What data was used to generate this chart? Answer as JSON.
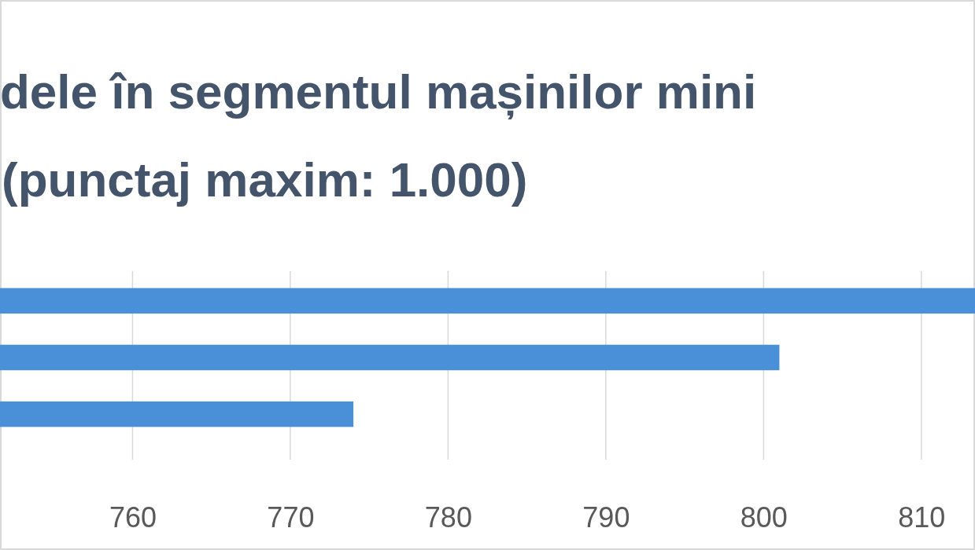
{
  "chart_data": {
    "type": "bar",
    "orientation": "horizontal",
    "title": "dele în segmentul mașinilor  mini",
    "subtitle": "(punctaj maxim: 1.000)",
    "categories": [
      null,
      null,
      null
    ],
    "values": [
      813.4,
      801,
      774
    ],
    "color": "#4a90d9",
    "xlim": [
      751.6,
      813.4
    ],
    "xticks": [
      760,
      770,
      780,
      790,
      800,
      810
    ],
    "grid": "x"
  }
}
